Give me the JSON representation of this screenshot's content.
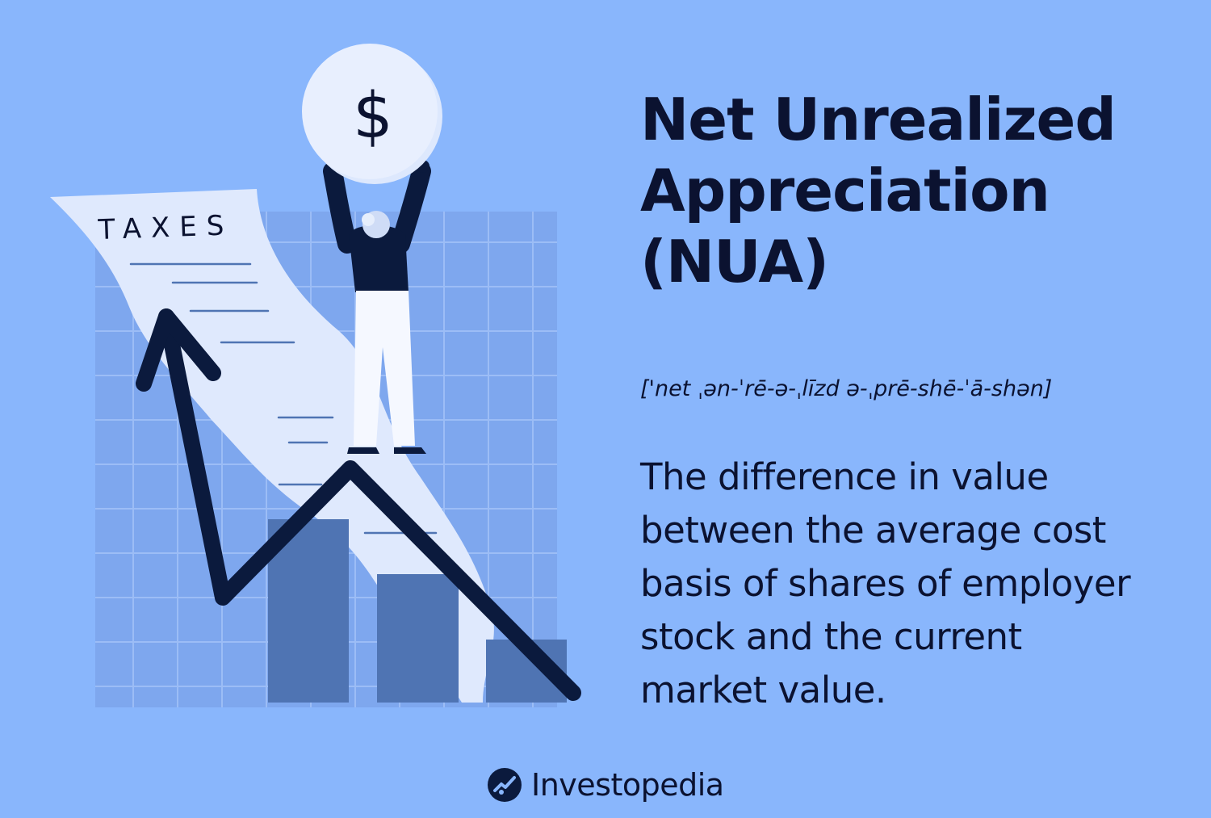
{
  "title_lines": [
    "Net Unrealized",
    "Appreciation",
    "(NUA)"
  ],
  "pronunciation": "['net ˌən-ˈrē-ə-ˌlīzd ə-ˌprē-shē-ˈā-shən]",
  "definition_lines": [
    "The difference in value",
    "between the average cost",
    "basis of shares of employer",
    "stock and the current",
    "market value."
  ],
  "illustration": {
    "document_label": "TAXES",
    "coin_symbol": "$"
  },
  "brand": {
    "name": "Investopedia"
  },
  "colors": {
    "background": "#89b6fc",
    "text": "#0b1230",
    "grid_panel": "#7aa5ef",
    "bars": "#4f74b3",
    "paper": "#dfe9fd"
  }
}
